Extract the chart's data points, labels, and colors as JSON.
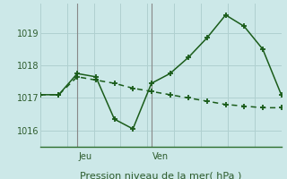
{
  "xlabel_bottom": "Pression niveau de la mer( hPa )",
  "background_color": "#cce8e8",
  "grid_color": "#b0d0d0",
  "line_color": "#1a5c1a",
  "marker_color": "#1a5c1a",
  "vline_color": "#888888",
  "axis_color": "#2d6e2d",
  "text_color": "#2d5c2d",
  "yticks": [
    1016,
    1017,
    1018,
    1019
  ],
  "ylim": [
    1015.5,
    1019.9
  ],
  "series1_x": [
    0,
    1,
    2,
    3,
    4,
    5,
    6,
    7,
    8,
    9,
    10,
    11,
    12,
    13
  ],
  "series1_y": [
    1017.1,
    1017.1,
    1017.75,
    1017.65,
    1016.35,
    1016.05,
    1017.45,
    1017.75,
    1018.25,
    1018.85,
    1019.55,
    1019.2,
    1018.5,
    1017.1
  ],
  "series2_x": [
    0,
    1,
    2,
    3,
    4,
    5,
    6,
    7,
    8,
    9,
    10,
    11,
    12,
    13
  ],
  "series2_y": [
    1017.1,
    1017.1,
    1017.65,
    1017.55,
    1017.45,
    1017.3,
    1017.2,
    1017.1,
    1017.0,
    1016.9,
    1016.8,
    1016.75,
    1016.7,
    1016.7
  ],
  "vline_jeu_x": 2,
  "vline_ven_x": 6,
  "label_jeu": "Jeu",
  "label_ven": "Ven",
  "xlim": [
    0,
    13
  ],
  "xlabel_fontsize": 8,
  "tick_fontsize": 7,
  "label_fontsize": 7
}
